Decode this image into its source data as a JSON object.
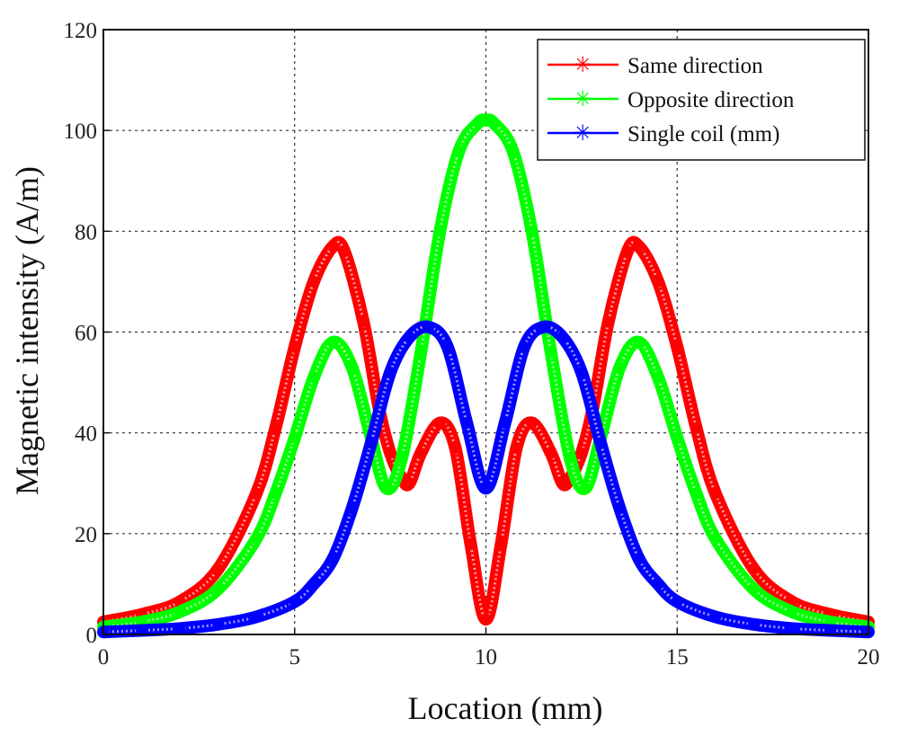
{
  "chart_data": {
    "type": "line",
    "title": "",
    "xlabel": "Location (mm)",
    "ylabel": "Magnetic intensity (A/m)",
    "xlim": [
      0,
      20
    ],
    "ylim": [
      0,
      120
    ],
    "xticks": [
      0,
      5,
      10,
      15,
      20
    ],
    "yticks": [
      0,
      20,
      40,
      60,
      80,
      100,
      120
    ],
    "grid": true,
    "legend_position": "top-right",
    "series": [
      {
        "name": "Same direction",
        "color": "#ff0000",
        "marker": "asterisk",
        "x": [
          0,
          1,
          2,
          3,
          4,
          4.5,
          5,
          5.5,
          6,
          6.3,
          6.8,
          7.2,
          7.5,
          7.8,
          8.0,
          8.3,
          8.8,
          9.2,
          9.6,
          10,
          10.4,
          10.8,
          11.2,
          11.7,
          12.0,
          12.2,
          12.5,
          12.8,
          13.2,
          13.7,
          14.0,
          14.5,
          15,
          15.5,
          16,
          17,
          18,
          19,
          20
        ],
        "y": [
          2.5,
          4,
          6.5,
          13,
          28,
          41,
          57,
          70,
          77,
          76,
          62,
          45,
          36,
          31,
          30,
          36,
          42,
          37,
          18,
          3,
          18,
          37,
          42,
          36,
          30,
          31,
          36,
          45,
          62,
          76,
          77,
          70,
          57,
          41,
          28,
          13,
          6.5,
          4,
          2.5
        ]
      },
      {
        "name": "Opposite direction",
        "color": "#00ff00",
        "marker": "asterisk",
        "x": [
          0,
          1,
          2,
          3,
          4,
          4.5,
          5,
          5.5,
          6,
          6.5,
          7.0,
          7.4,
          7.8,
          8.3,
          8.8,
          9.3,
          9.8,
          10,
          10.2,
          10.7,
          11.2,
          11.7,
          12.2,
          12.6,
          13.0,
          13.5,
          14,
          14.5,
          15,
          15.5,
          16,
          17,
          18,
          19,
          20
        ],
        "y": [
          1.5,
          2.5,
          4.5,
          9,
          19,
          28,
          39,
          51,
          58,
          53,
          39,
          29,
          35,
          56,
          80,
          96,
          101.5,
          102,
          101.5,
          96,
          80,
          56,
          35,
          29,
          39,
          53,
          58,
          51,
          39,
          28,
          19,
          9,
          4.5,
          2.5,
          1.5
        ]
      },
      {
        "name": "Single coil (mm)",
        "color": "#0000ff",
        "marker": "asterisk",
        "x": [
          0,
          1,
          2,
          3,
          4,
          5,
          5.5,
          6,
          6.5,
          7,
          7.5,
          8,
          8.5,
          9,
          9.5,
          10,
          10.5,
          11,
          11.5,
          12,
          12.5,
          13,
          13.5,
          14,
          14.5,
          15,
          16,
          17,
          18,
          19,
          20
        ],
        "y": [
          0.5,
          0.8,
          1.2,
          2,
          3.5,
          6.5,
          10,
          15,
          25,
          38,
          52,
          59,
          61,
          57,
          42,
          29,
          42,
          57,
          61,
          59,
          52,
          38,
          25,
          15,
          10,
          6.5,
          3.5,
          2,
          1.2,
          0.8,
          0.5
        ]
      }
    ]
  }
}
